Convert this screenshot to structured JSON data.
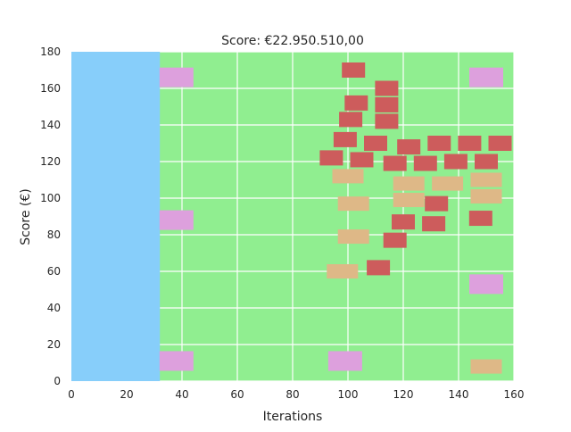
{
  "title": "Score: €22.950.510,00",
  "axes": {
    "xlabel": "Iterations",
    "ylabel": "Score (€)",
    "xlim": [
      0,
      160
    ],
    "ylim": [
      0,
      180
    ],
    "xticks": [
      0,
      20,
      40,
      60,
      80,
      100,
      120,
      140,
      160
    ],
    "yticks": [
      0,
      20,
      40,
      60,
      80,
      100,
      120,
      140,
      160,
      180
    ],
    "grid": true
  },
  "colors": {
    "background": "#90ee90",
    "wall": "#87cefa",
    "brick": "#cd5c5c",
    "tan_block": "#deb887",
    "pink_block": "#dda0dd",
    "grid": "#ffffff"
  },
  "wall": {
    "x": [
      0,
      32
    ],
    "y": [
      0,
      180
    ]
  },
  "red_bricks": [
    [
      102,
      170
    ],
    [
      114,
      160
    ],
    [
      103,
      152
    ],
    [
      114,
      151
    ],
    [
      101,
      143
    ],
    [
      114,
      142
    ],
    [
      99,
      132
    ],
    [
      110,
      130
    ],
    [
      122,
      128
    ],
    [
      133,
      130
    ],
    [
      144,
      130
    ],
    [
      155,
      130
    ],
    [
      94,
      122
    ],
    [
      105,
      121
    ],
    [
      117,
      119
    ],
    [
      128,
      119
    ],
    [
      139,
      120
    ],
    [
      150,
      120
    ],
    [
      132,
      97
    ],
    [
      148,
      89
    ],
    [
      120,
      87
    ],
    [
      131,
      86
    ],
    [
      117,
      77
    ],
    [
      111,
      62
    ]
  ],
  "tan_blocks": [
    [
      100,
      112
    ],
    [
      122,
      108
    ],
    [
      136,
      108
    ],
    [
      150,
      110
    ],
    [
      102,
      97
    ],
    [
      122,
      99
    ],
    [
      150,
      101
    ],
    [
      102,
      79
    ],
    [
      98,
      60
    ],
    [
      150,
      8
    ]
  ],
  "pink_blocks": [
    [
      38,
      166
    ],
    [
      150,
      166
    ],
    [
      38,
      88
    ],
    [
      150,
      53
    ],
    [
      38,
      11
    ],
    [
      99,
      11
    ]
  ]
}
